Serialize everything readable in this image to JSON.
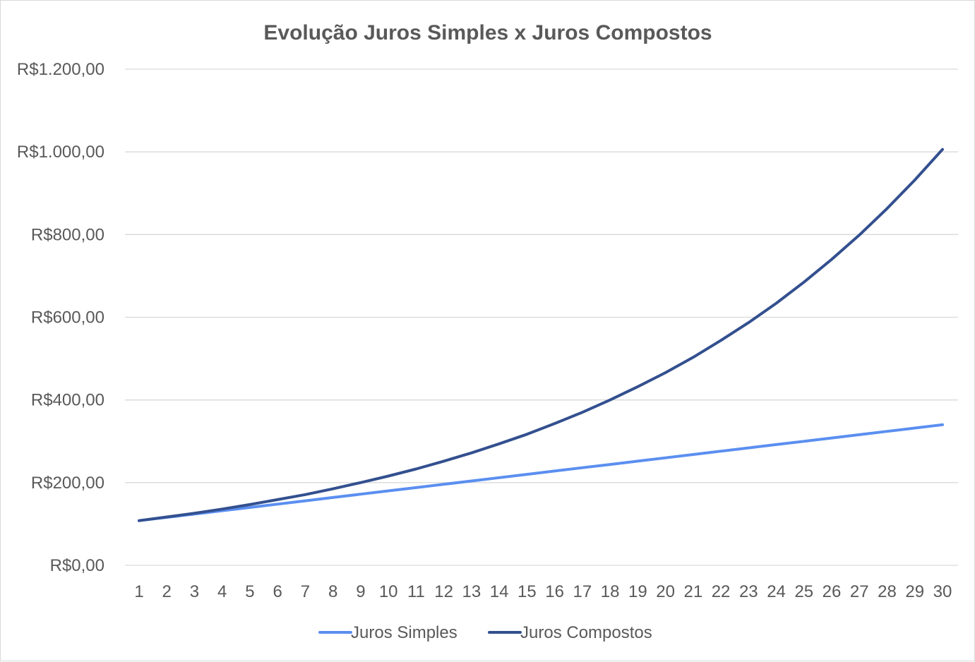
{
  "chart_data": {
    "type": "line",
    "title": "Evolução Juros Simples x Juros Compostos",
    "xlabel": "",
    "ylabel": "",
    "categories": [
      "1",
      "2",
      "3",
      "4",
      "5",
      "6",
      "7",
      "8",
      "9",
      "10",
      "11",
      "12",
      "13",
      "14",
      "15",
      "16",
      "17",
      "18",
      "19",
      "20",
      "21",
      "22",
      "23",
      "24",
      "25",
      "26",
      "27",
      "28",
      "29",
      "30"
    ],
    "y_ticks": [
      0,
      200,
      400,
      600,
      800,
      1000,
      1200
    ],
    "y_tick_labels": [
      "R$0,00",
      "R$200,00",
      "R$400,00",
      "R$600,00",
      "R$800,00",
      "R$1.000,00",
      "R$1.200,00"
    ],
    "ylim": [
      0,
      1200
    ],
    "grid": true,
    "legend_position": "bottom",
    "series": [
      {
        "name": "Juros Simples",
        "color": "#5b8ff0",
        "values": [
          108,
          116,
          124,
          132,
          140,
          148,
          156,
          164,
          172,
          180,
          188,
          196,
          204,
          212,
          220,
          228,
          236,
          244,
          252,
          260,
          268,
          276,
          284,
          292,
          300,
          308,
          316,
          324,
          332,
          340
        ]
      },
      {
        "name": "Juros Compostos",
        "color": "#33508f",
        "values": [
          108,
          117,
          126,
          136,
          147,
          159,
          171,
          185,
          200,
          216,
          233,
          252,
          272,
          294,
          317,
          343,
          370,
          400,
          432,
          466,
          503,
          544,
          587,
          634,
          685,
          740,
          799,
          863,
          932,
          1006
        ]
      }
    ]
  }
}
